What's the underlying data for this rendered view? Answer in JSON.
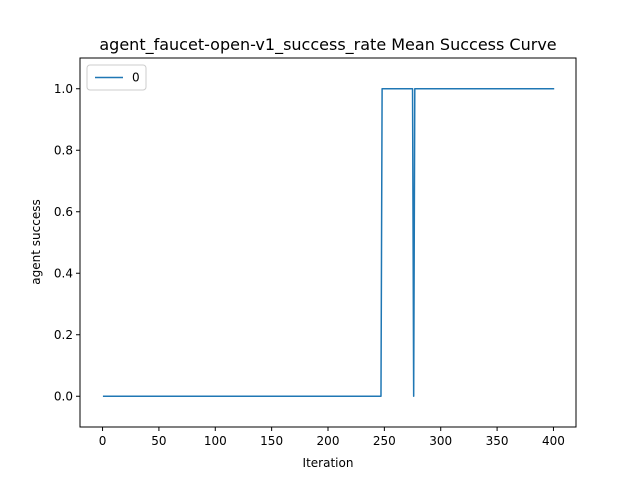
{
  "chart_data": {
    "type": "line",
    "title": "agent_faucet-open-v1_success_rate Mean Success Curve",
    "xlabel": "Iteration",
    "ylabel": "agent success",
    "xlim": [
      -20,
      420
    ],
    "ylim": [
      -0.1,
      1.1
    ],
    "xticks": [
      0,
      50,
      100,
      150,
      200,
      250,
      300,
      350,
      400
    ],
    "yticks": [
      0.0,
      0.2,
      0.4,
      0.6,
      0.8,
      1.0
    ],
    "xtick_labels": [
      "0",
      "50",
      "100",
      "150",
      "200",
      "250",
      "300",
      "350",
      "400"
    ],
    "ytick_labels": [
      "0.0",
      "0.2",
      "0.4",
      "0.6",
      "0.8",
      "1.0"
    ],
    "grid": false,
    "legend_position": "top-left",
    "series": [
      {
        "name": "0",
        "color": "#1f77b4",
        "x": [
          1,
          247,
          248,
          275,
          276,
          277,
          400
        ],
        "y": [
          0,
          0,
          1,
          1,
          0,
          1,
          1
        ]
      }
    ]
  }
}
